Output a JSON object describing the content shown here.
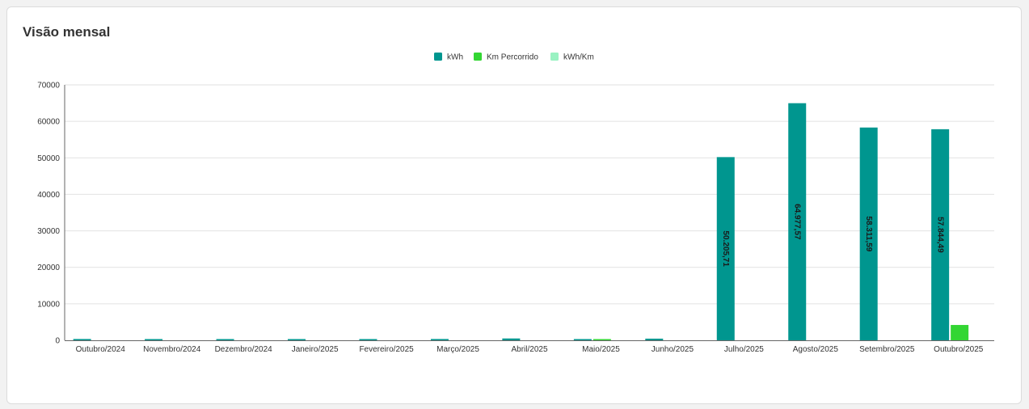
{
  "card": {
    "title": "Visão mensal"
  },
  "chart_data": {
    "type": "bar",
    "title": "",
    "xlabel": "",
    "ylabel": "",
    "ylim": [
      0,
      70000
    ],
    "yticks": [
      0,
      10000,
      20000,
      30000,
      40000,
      50000,
      60000,
      70000
    ],
    "grid": true,
    "legend_position": "top-center",
    "categories": [
      "Outubro/2024",
      "Novembro/2024",
      "Dezembro/2024",
      "Janeiro/2025",
      "Fevereiro/2025",
      "Março/2025",
      "Abril/2025",
      "Maio/2025",
      "Junho/2025",
      "Julho/2025",
      "Agosto/2025",
      "Setembro/2025",
      "Outubro/2025"
    ],
    "series": [
      {
        "name": "kWh",
        "color": "#00968f",
        "values": [
          350,
          300,
          200,
          150,
          150,
          350,
          500,
          120,
          450,
          50205.71,
          64977.57,
          58311.59,
          57844.49
        ],
        "labels": [
          "",
          "",
          "",
          "",
          "",
          "",
          "",
          "",
          "",
          "50.205,71",
          "64.977,57",
          "58.311,59",
          "57.844,49"
        ]
      },
      {
        "name": "Km Percorrido",
        "color": "#33d633",
        "values": [
          0,
          0,
          0,
          0,
          0,
          0,
          0,
          300,
          0,
          0,
          0,
          0,
          4200
        ],
        "labels": [
          "",
          "",
          "",
          "",
          "",
          "",
          "",
          "",
          "",
          "",
          "",
          "",
          ""
        ]
      },
      {
        "name": "kWh/Km",
        "color": "#99f2c2",
        "values": [
          0,
          0,
          0,
          0,
          0,
          0,
          0,
          0,
          0,
          0,
          0,
          0,
          0
        ],
        "labels": [
          "",
          "",
          "",
          "",
          "",
          "",
          "",
          "",
          "",
          "",
          "",
          "",
          ""
        ]
      }
    ]
  }
}
